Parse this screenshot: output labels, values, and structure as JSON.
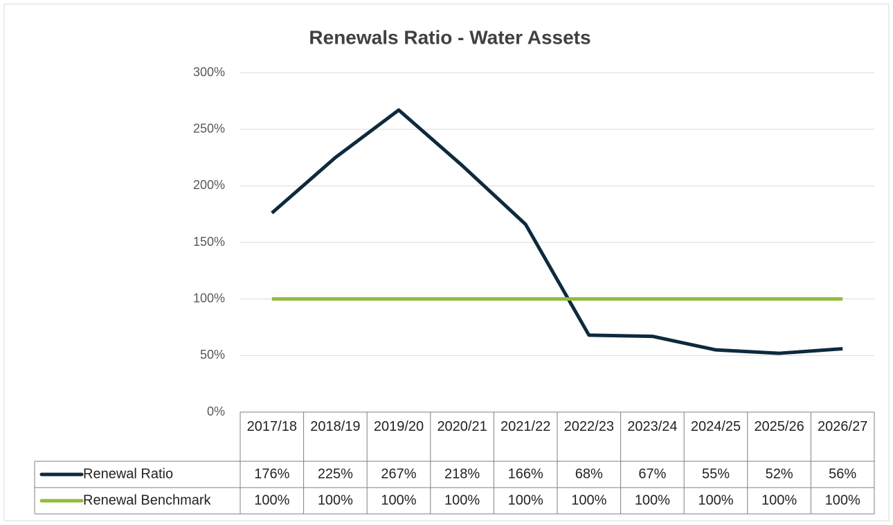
{
  "chart_data": {
    "type": "line",
    "title": "Renewals Ratio - Water Assets",
    "categories": [
      "2017/18",
      "2018/19",
      "2019/20",
      "2020/21",
      "2021/22",
      "2022/23",
      "2023/24",
      "2024/25",
      "2025/26",
      "2026/27"
    ],
    "series": [
      {
        "name": "Renewal Ratio",
        "color": "#0d2a3e",
        "values": [
          176,
          225,
          267,
          218,
          166,
          68,
          67,
          55,
          52,
          56
        ],
        "value_labels": [
          "176%",
          "225%",
          "267%",
          "218%",
          "166%",
          "68%",
          "67%",
          "55%",
          "52%",
          "56%"
        ]
      },
      {
        "name": "Renewal Benchmark",
        "color": "#92bc3c",
        "values": [
          100,
          100,
          100,
          100,
          100,
          100,
          100,
          100,
          100,
          100
        ],
        "value_labels": [
          "100%",
          "100%",
          "100%",
          "100%",
          "100%",
          "100%",
          "100%",
          "100%",
          "100%",
          "100%"
        ]
      }
    ],
    "ylim": [
      0,
      300
    ],
    "yticks": [
      {
        "value": 0,
        "label": "0%"
      },
      {
        "value": 50,
        "label": "50%"
      },
      {
        "value": 100,
        "label": "100%"
      },
      {
        "value": 150,
        "label": "150%"
      },
      {
        "value": 200,
        "label": "200%"
      },
      {
        "value": 250,
        "label": "250%"
      },
      {
        "value": 300,
        "label": "300%"
      }
    ],
    "grid": true
  }
}
